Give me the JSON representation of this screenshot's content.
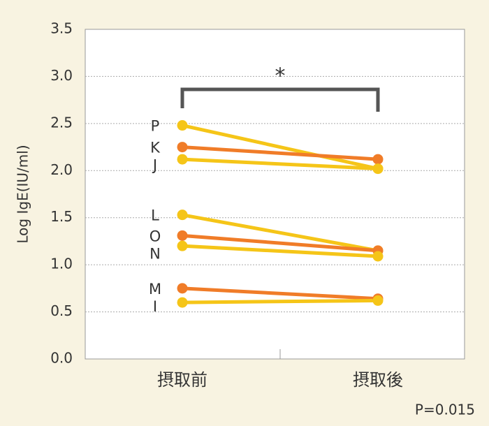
{
  "chart_data": {
    "type": "slope",
    "y_label": "Log IgE(IU/ml)",
    "categories": [
      "摂取前",
      "摂取後"
    ],
    "series": [
      {
        "name": "P",
        "color": "#f5c518",
        "values": [
          2.48,
          2.02
        ]
      },
      {
        "name": "K",
        "color": "#f07c28",
        "values": [
          2.25,
          2.12
        ]
      },
      {
        "name": "J",
        "color": "#f5c518",
        "values": [
          2.12,
          2.02
        ]
      },
      {
        "name": "L",
        "color": "#f5c518",
        "values": [
          1.53,
          1.15
        ]
      },
      {
        "name": "O",
        "color": "#f07c28",
        "values": [
          1.31,
          1.15
        ]
      },
      {
        "name": "N",
        "color": "#f5c518",
        "values": [
          1.2,
          1.09
        ]
      },
      {
        "name": "M",
        "color": "#f07c28",
        "values": [
          0.75,
          0.64
        ]
      },
      {
        "name": "I",
        "color": "#f5c518",
        "values": [
          0.6,
          0.62
        ]
      }
    ],
    "ylim": [
      0,
      3.5
    ],
    "yticks": [
      {
        "value": 0,
        "label": "0.0"
      },
      {
        "value": 0.5,
        "label": "0.5"
      },
      {
        "value": 1,
        "label": "1.0"
      },
      {
        "value": 1.5,
        "label": "1.5"
      },
      {
        "value": 2,
        "label": "2.0"
      },
      {
        "value": 2.5,
        "label": "2.5"
      },
      {
        "value": 3,
        "label": "3.0"
      },
      {
        "value": 3.5,
        "label": "3.5"
      }
    ],
    "grid": true,
    "significance": "*",
    "p_value_text": "P=0.015"
  }
}
